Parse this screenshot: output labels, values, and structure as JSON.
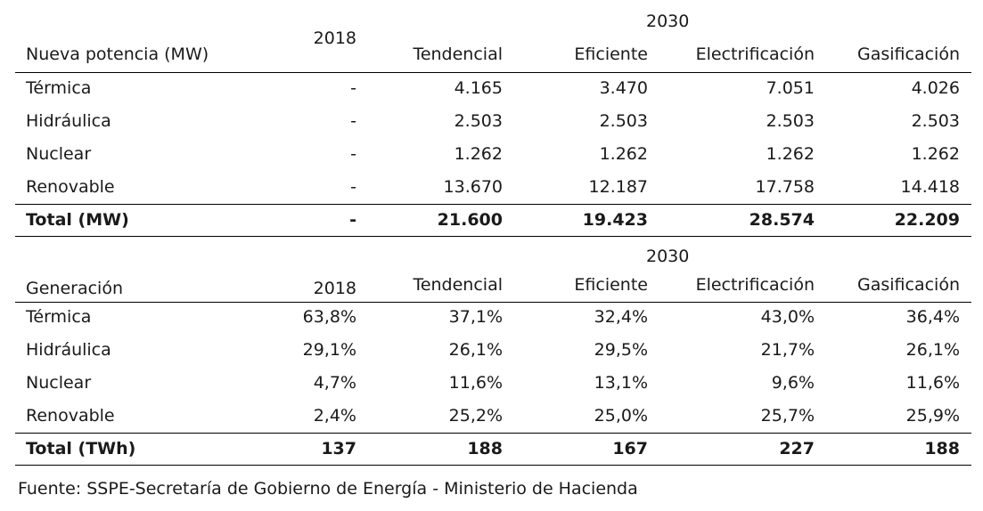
{
  "table1": {
    "year_label": "2030",
    "header": [
      "Nueva potencia (MW)",
      "2018",
      "Tendencial",
      "Eficiente",
      "Electrificación",
      "Gasificación"
    ],
    "rows": [
      [
        "Térmica",
        "-",
        "4.165",
        "3.470",
        "7.051",
        "4.026"
      ],
      [
        "Hidráulica",
        "-",
        "2.503",
        "2.503",
        "2.503",
        "2.503"
      ],
      [
        "Nuclear",
        "-",
        "1.262",
        "1.262",
        "1.262",
        "1.262"
      ],
      [
        "Renovable",
        "-",
        "13.670",
        "12.187",
        "17.758",
        "14.418"
      ]
    ],
    "total": [
      "Total (MW)",
      "-",
      "21.600",
      "19.423",
      "28.574",
      "22.209"
    ]
  },
  "table2": {
    "year_label": "2030",
    "header": [
      "Generación",
      "2018",
      "Tendencial",
      "Eficiente",
      "Electrificación",
      "Gasificación"
    ],
    "rows": [
      [
        "Térmica",
        "63,8%",
        "37,1%",
        "32,4%",
        "43,0%",
        "36,4%"
      ],
      [
        "Hidráulica",
        "29,1%",
        "26,1%",
        "29,5%",
        "21,7%",
        "26,1%"
      ],
      [
        "Nuclear",
        "4,7%",
        "11,6%",
        "13,1%",
        "9,6%",
        "11,6%"
      ],
      [
        "Renovable",
        "2,4%",
        "25,2%",
        "25,0%",
        "25,7%",
        "25,9%"
      ]
    ],
    "total": [
      "Total (TWh)",
      "137",
      "188",
      "167",
      "227",
      "188"
    ]
  },
  "source": "Fuente: SSPE-Secretaría de Gobierno de Energía - Ministerio de Hacienda"
}
